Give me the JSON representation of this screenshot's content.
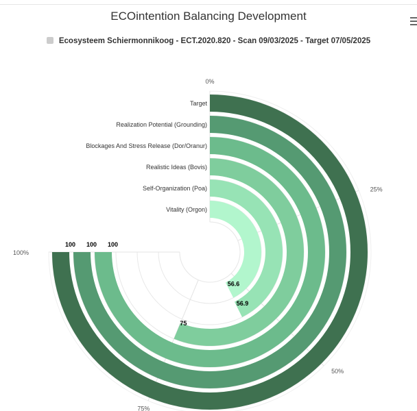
{
  "title": "ECOintention Balancing Development",
  "menu_icon": "hamburger-menu-icon",
  "legend": {
    "label": "Ecosysteem Schiermonnikoog - ECT.2020.820 - Scan 09/03/2025 - Target 07/05/2025",
    "swatch_color": "#cccccc"
  },
  "chart_data": {
    "type": "radial-bar",
    "title": "ECOintention Balancing Development",
    "series_name": "Ecosysteem Schiermonnikoog - ECT.2020.820 - Scan 09/03/2025 - Target 07/05/2025",
    "categories": [
      "Target",
      "Realization Potential (Grounding)",
      "Blockages And Stress Release (Dor/Oranur)",
      "Realistic Ideas (Bovis)",
      "Self-Organization (Poa)",
      "Vitality (Orgon)"
    ],
    "values": [
      100,
      100,
      100,
      75,
      56.9,
      56.6
    ],
    "value_labels": [
      "100",
      "100",
      "100",
      "75",
      "56.9",
      "56.6"
    ],
    "colors": [
      "#3f7150",
      "#559a72",
      "#6cbb8c",
      "#7fcd9d",
      "#97e3b5",
      "#b2f6cd"
    ],
    "max": 100,
    "angle_ticks": [
      "0%",
      "25%",
      "50%",
      "75%",
      "100%"
    ],
    "legend_position": "top-center"
  }
}
